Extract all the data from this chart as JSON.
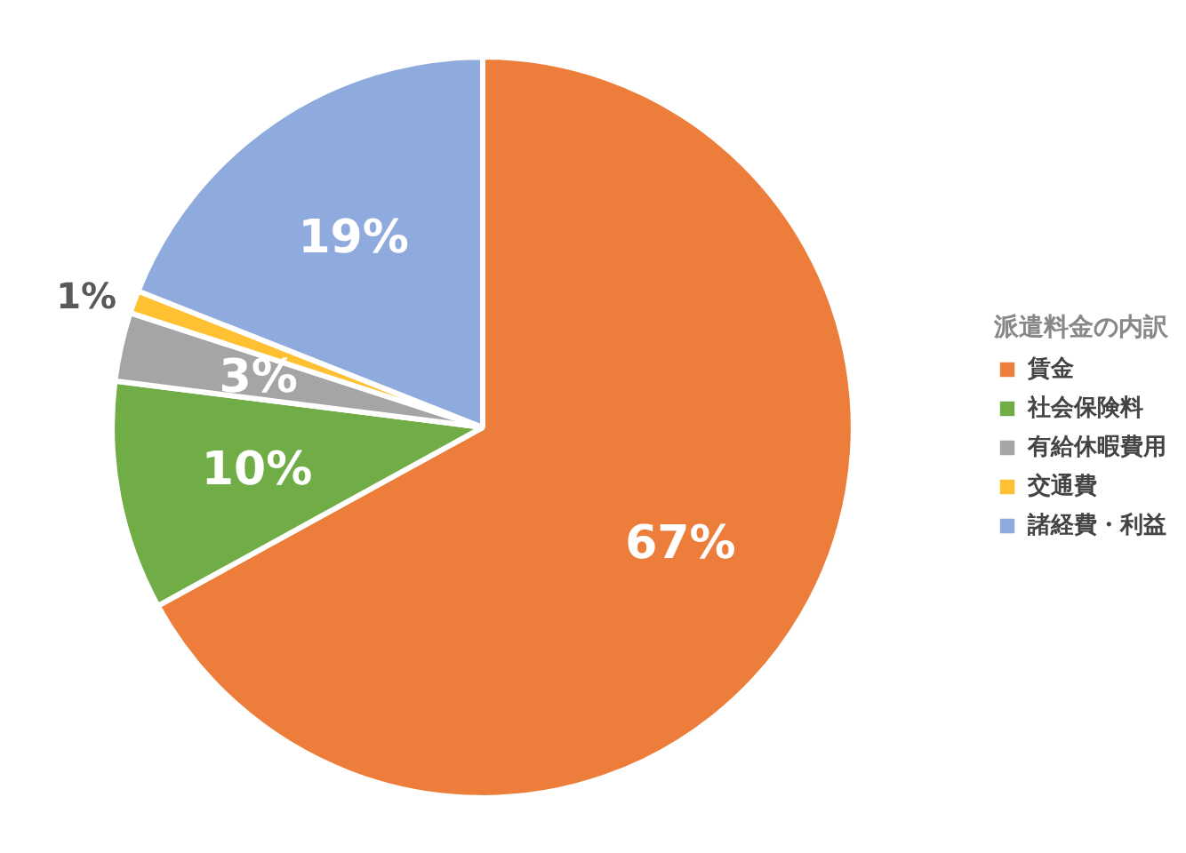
{
  "chart_data": {
    "type": "pie",
    "legend_title": "派遣料金の内訳",
    "categories": [
      "賃金",
      "社会保険料",
      "有給休暇費用",
      "交通費",
      "諸経費・利益"
    ],
    "values": [
      67,
      10,
      3,
      1,
      19
    ],
    "colors": [
      "#ed7d3a",
      "#70ad47",
      "#a5a5a5",
      "#ffc032",
      "#8faadc"
    ],
    "value_labels": [
      "67%",
      "10%",
      "3%",
      "1%",
      "19%"
    ],
    "legend": "right"
  }
}
